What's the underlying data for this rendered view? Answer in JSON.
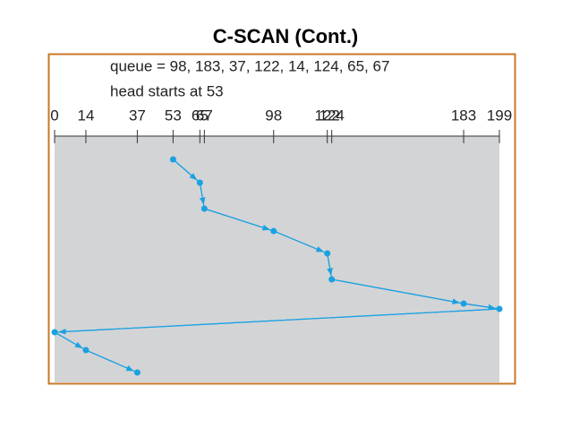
{
  "chart_data": {
    "type": "line",
    "title": "C-SCAN (Cont.)",
    "annotations": [
      "queue = 98, 183, 37, 122, 14, 124, 65, 67",
      "head starts at 53"
    ],
    "xlim": [
      0,
      199
    ],
    "xticks": [
      0,
      14,
      37,
      53,
      65,
      67,
      98,
      122,
      124,
      183,
      199
    ],
    "x": [
      53,
      65,
      67,
      98,
      122,
      124,
      183,
      199,
      0,
      14,
      37
    ],
    "color": "#1ba1e2"
  }
}
